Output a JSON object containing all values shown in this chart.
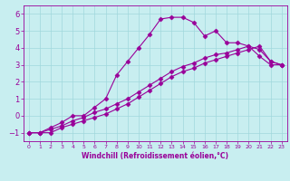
{
  "xlabel": "Windchill (Refroidissement éolien,°C)",
  "bg_color": "#c8eef0",
  "line_color": "#990099",
  "xlim": [
    -0.5,
    23.5
  ],
  "ylim": [
    -1.5,
    6.5
  ],
  "xticks": [
    0,
    1,
    2,
    3,
    4,
    5,
    6,
    7,
    8,
    9,
    10,
    11,
    12,
    13,
    14,
    15,
    16,
    17,
    18,
    19,
    20,
    21,
    22,
    23
  ],
  "yticks": [
    -1,
    0,
    1,
    2,
    3,
    4,
    5,
    6
  ],
  "line1_x": [
    0,
    1,
    2,
    3,
    4,
    5,
    6,
    7,
    8,
    9,
    10,
    11,
    12,
    13,
    14,
    15,
    16,
    17,
    18,
    19,
    20,
    21,
    22,
    23
  ],
  "line1_y": [
    -1.0,
    -1.0,
    -0.7,
    -0.4,
    0.0,
    0.0,
    0.5,
    1.0,
    2.4,
    3.2,
    4.0,
    4.8,
    5.7,
    5.8,
    5.8,
    5.5,
    4.7,
    5.0,
    4.3,
    4.3,
    4.1,
    3.5,
    3.0,
    3.0
  ],
  "line2_x": [
    0,
    1,
    2,
    3,
    4,
    5,
    6,
    7,
    8,
    9,
    10,
    11,
    12,
    13,
    14,
    15,
    16,
    17,
    18,
    19,
    20,
    21,
    22,
    23
  ],
  "line2_y": [
    -1.0,
    -1.0,
    -1.0,
    -0.7,
    -0.5,
    -0.3,
    -0.1,
    0.1,
    0.4,
    0.7,
    1.1,
    1.5,
    1.9,
    2.3,
    2.6,
    2.8,
    3.1,
    3.3,
    3.5,
    3.7,
    3.9,
    4.1,
    3.2,
    3.0
  ],
  "line3_x": [
    0,
    1,
    2,
    3,
    4,
    5,
    6,
    7,
    8,
    9,
    10,
    11,
    12,
    13,
    14,
    15,
    16,
    17,
    18,
    19,
    20,
    21,
    22,
    23
  ],
  "line3_y": [
    -1.0,
    -1.0,
    -0.8,
    -0.6,
    -0.3,
    -0.1,
    0.2,
    0.4,
    0.7,
    1.0,
    1.4,
    1.8,
    2.2,
    2.6,
    2.9,
    3.1,
    3.4,
    3.6,
    3.7,
    3.9,
    4.1,
    3.9,
    3.2,
    3.0
  ],
  "grid_color": "#a0d8dc",
  "marker": "D",
  "markersize": 2.5,
  "linewidth": 0.8,
  "tick_fontsize_x": 4.5,
  "tick_fontsize_y": 6.0,
  "xlabel_fontsize": 5.5
}
